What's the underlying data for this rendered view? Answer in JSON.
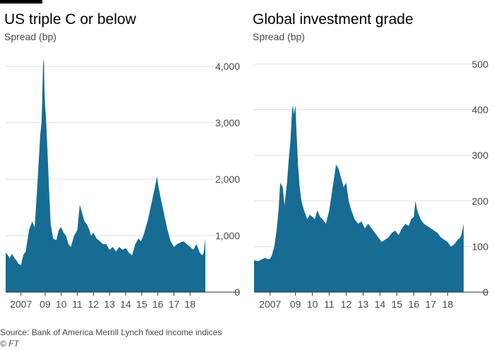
{
  "chart_data": [
    {
      "type": "area",
      "title": "US triple C or below",
      "ylabel": "Spread (bp)",
      "ylim": [
        0,
        4200
      ],
      "yticks": [
        0,
        1000,
        2000,
        3000,
        4000
      ],
      "ytick_labels": [
        "0",
        "1,000",
        "2,000",
        "3,000",
        "4,000"
      ],
      "xlim": [
        2006.55,
        2018.95
      ],
      "xticks": [
        2007.5,
        2009,
        2010,
        2011,
        2012,
        2013,
        2014,
        2015,
        2016,
        2017,
        2018
      ],
      "xtick_labels": [
        "2007",
        "09",
        "10",
        "11",
        "12",
        "13",
        "14",
        "15",
        "16",
        "17",
        "18"
      ],
      "color": "#176c93",
      "grid": true,
      "x": [
        2006.55,
        2006.7,
        2006.8,
        2006.95,
        2007.1,
        2007.25,
        2007.35,
        2007.5,
        2007.65,
        2007.8,
        2008.0,
        2008.2,
        2008.35,
        2008.5,
        2008.6,
        2008.7,
        2008.78,
        2008.82,
        2008.87,
        2008.92,
        2008.96,
        2009.0,
        2009.05,
        2009.15,
        2009.25,
        2009.35,
        2009.5,
        2009.7,
        2009.85,
        2010.0,
        2010.15,
        2010.3,
        2010.45,
        2010.6,
        2010.8,
        2011.0,
        2011.15,
        2011.3,
        2011.45,
        2011.6,
        2011.75,
        2011.85,
        2012.0,
        2012.2,
        2012.4,
        2012.6,
        2012.8,
        2013.0,
        2013.2,
        2013.4,
        2013.6,
        2013.8,
        2014.0,
        2014.2,
        2014.4,
        2014.6,
        2014.8,
        2014.95,
        2015.1,
        2015.25,
        2015.4,
        2015.55,
        2015.7,
        2015.85,
        2015.95,
        2016.05,
        2016.15,
        2016.3,
        2016.45,
        2016.6,
        2016.8,
        2017.0,
        2017.2,
        2017.4,
        2017.6,
        2017.8,
        2018.0,
        2018.2,
        2018.4,
        2018.6,
        2018.75,
        2018.85,
        2018.95
      ],
      "values": [
        700,
        650,
        600,
        680,
        600,
        550,
        500,
        480,
        660,
        720,
        1100,
        1250,
        1150,
        1800,
        2300,
        2800,
        3000,
        3400,
        4000,
        4150,
        3600,
        3300,
        3100,
        2500,
        1800,
        1200,
        950,
        920,
        1100,
        1150,
        1050,
        1000,
        850,
        800,
        1000,
        1100,
        1550,
        1400,
        1250,
        1200,
        1100,
        1000,
        1050,
        950,
        900,
        850,
        850,
        750,
        800,
        720,
        800,
        750,
        780,
        700,
        650,
        850,
        950,
        900,
        1000,
        1150,
        1300,
        1500,
        1700,
        1900,
        2050,
        1850,
        1700,
        1500,
        1300,
        1100,
        900,
        800,
        850,
        880,
        900,
        850,
        800,
        750,
        850,
        700,
        650,
        700,
        950
      ]
    },
    {
      "type": "area",
      "title": "Global investment grade",
      "ylabel": "Spread (bp)",
      "ylim": [
        0,
        520
      ],
      "yticks": [
        0,
        100,
        200,
        300,
        400,
        500
      ],
      "ytick_labels": [
        "0",
        "100",
        "200",
        "300",
        "400",
        "500"
      ],
      "xlim": [
        2006.55,
        2018.95
      ],
      "xticks": [
        2007.5,
        2009,
        2010,
        2011,
        2012,
        2013,
        2014,
        2015,
        2016,
        2017,
        2018
      ],
      "xtick_labels": [
        "2007",
        "09",
        "10",
        "11",
        "12",
        "13",
        "14",
        "15",
        "16",
        "17",
        "18"
      ],
      "color": "#176c93",
      "grid": true,
      "x": [
        2006.55,
        2006.8,
        2007.0,
        2007.2,
        2007.4,
        2007.5,
        2007.6,
        2007.75,
        2007.9,
        2008.0,
        2008.1,
        2008.25,
        2008.35,
        2008.5,
        2008.6,
        2008.7,
        2008.8,
        2008.85,
        2008.9,
        2008.95,
        2009.0,
        2009.05,
        2009.1,
        2009.15,
        2009.25,
        2009.35,
        2009.5,
        2009.7,
        2009.85,
        2010.0,
        2010.15,
        2010.3,
        2010.45,
        2010.6,
        2010.8,
        2011.0,
        2011.2,
        2011.4,
        2011.55,
        2011.7,
        2011.85,
        2012.0,
        2012.15,
        2012.3,
        2012.5,
        2012.7,
        2012.9,
        2013.1,
        2013.3,
        2013.5,
        2013.7,
        2013.9,
        2014.1,
        2014.3,
        2014.5,
        2014.7,
        2014.9,
        2015.1,
        2015.3,
        2015.5,
        2015.7,
        2015.85,
        2016.0,
        2016.1,
        2016.2,
        2016.4,
        2016.6,
        2016.8,
        2017.0,
        2017.2,
        2017.4,
        2017.6,
        2017.8,
        2018.0,
        2018.2,
        2018.4,
        2018.6,
        2018.75,
        2018.85,
        2018.95
      ],
      "values": [
        70,
        68,
        72,
        75,
        72,
        74,
        80,
        100,
        140,
        180,
        240,
        230,
        190,
        240,
        290,
        330,
        400,
        410,
        390,
        400,
        410,
        360,
        320,
        280,
        230,
        200,
        180,
        160,
        170,
        165,
        160,
        180,
        165,
        160,
        150,
        180,
        230,
        280,
        270,
        250,
        230,
        240,
        200,
        180,
        160,
        150,
        155,
        140,
        150,
        140,
        130,
        120,
        110,
        115,
        120,
        130,
        135,
        125,
        140,
        150,
        145,
        160,
        165,
        200,
        180,
        160,
        150,
        145,
        140,
        135,
        130,
        120,
        115,
        110,
        100,
        105,
        115,
        120,
        130,
        150
      ]
    }
  ],
  "footer": {
    "source": "Source: Bank of America Merrill Lynch fixed income indices",
    "credit": "© FT"
  }
}
